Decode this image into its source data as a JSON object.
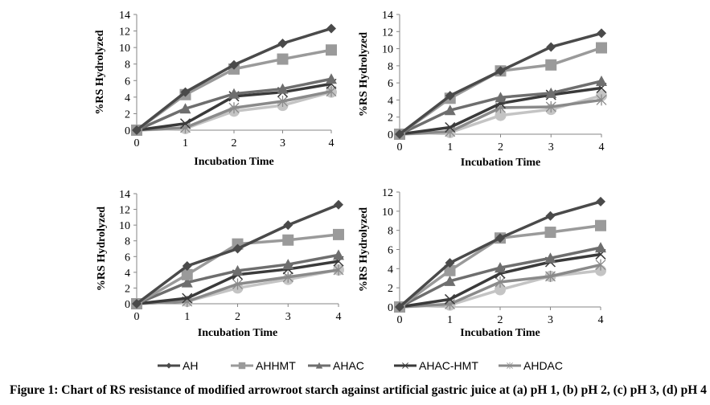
{
  "caption": "Figure 1: Chart of RS resistance of modified arrowroot starch against artificial gastric juice at (a) pH 1, (b) pH 2, (c) pH 3, (d) pH 4",
  "legend": [
    {
      "name": "AH",
      "marker": "diamond",
      "color": "#4a4a4a"
    },
    {
      "name": "AHHMT",
      "marker": "square",
      "color": "#9a9a9a"
    },
    {
      "name": "AHAC",
      "marker": "triangle",
      "color": "#6e6e6e"
    },
    {
      "name": "AHAC-HMT",
      "marker": "x",
      "color": "#3a3a3a"
    },
    {
      "name": "AHDAC",
      "marker": "asterisk",
      "color": "#8a8a8a"
    }
  ],
  "chart_data": [
    {
      "type": "line",
      "panel": "(a) pH 1",
      "xlabel": "Incubation Time",
      "ylabel": "%RS Hydrolyzed",
      "x": [
        0,
        1,
        2,
        3,
        4
      ],
      "ylim": [
        0,
        14
      ],
      "yticks": [
        0,
        2,
        4,
        6,
        8,
        10,
        12,
        14
      ],
      "grid": false,
      "legend": "bottom",
      "series": [
        {
          "name": "AH",
          "marker": "diamond",
          "color": "#4a4a4a",
          "values": [
            0,
            4.6,
            7.9,
            10.5,
            12.3
          ]
        },
        {
          "name": "AHHMT",
          "marker": "square",
          "color": "#9a9a9a",
          "values": [
            0,
            4.3,
            7.4,
            8.6,
            9.7
          ]
        },
        {
          "name": "AHAC",
          "marker": "triangle",
          "color": "#6e6e6e",
          "values": [
            0,
            2.6,
            4.4,
            5.0,
            6.2
          ]
        },
        {
          "name": "AHAC-HMT",
          "marker": "x",
          "color": "#3a3a3a",
          "values": [
            0,
            0.8,
            4.1,
            4.6,
            5.6
          ]
        },
        {
          "name": "AHDAC",
          "marker": "asterisk",
          "color": "#8a8a8a",
          "values": [
            0,
            0.3,
            2.7,
            3.5,
            4.7
          ]
        },
        {
          "name": "",
          "marker": "circle",
          "color": "#c4c4c4",
          "values": [
            0,
            0.2,
            2.3,
            3.0,
            4.6
          ]
        }
      ]
    },
    {
      "type": "line",
      "panel": "(b) pH 2",
      "xlabel": "Incubation Time",
      "ylabel": "%RS Hydrolyzed",
      "x": [
        0,
        1,
        2,
        3,
        4
      ],
      "ylim": [
        0,
        14
      ],
      "yticks": [
        0,
        2,
        4,
        6,
        8,
        10,
        12,
        14
      ],
      "grid": false,
      "legend": "bottom",
      "series": [
        {
          "name": "AH",
          "marker": "diamond",
          "color": "#4a4a4a",
          "values": [
            0,
            4.5,
            7.4,
            10.2,
            11.8
          ]
        },
        {
          "name": "AHHMT",
          "marker": "square",
          "color": "#9a9a9a",
          "values": [
            0,
            4.2,
            7.4,
            8.1,
            10.1
          ]
        },
        {
          "name": "AHAC",
          "marker": "triangle",
          "color": "#6e6e6e",
          "values": [
            0,
            2.8,
            4.3,
            4.8,
            6.2
          ]
        },
        {
          "name": "AHAC-HMT",
          "marker": "x",
          "color": "#3a3a3a",
          "values": [
            0,
            0.8,
            3.6,
            4.6,
            5.4
          ]
        },
        {
          "name": "AHDAC",
          "marker": "asterisk",
          "color": "#8a8a8a",
          "values": [
            0,
            0.3,
            3.1,
            3.2,
            4.0
          ]
        },
        {
          "name": "",
          "marker": "circle",
          "color": "#c4c4c4",
          "values": [
            0,
            0.2,
            2.2,
            2.9,
            4.5
          ]
        }
      ]
    },
    {
      "type": "line",
      "panel": "(c) pH 3",
      "xlabel": "Incubation Time",
      "ylabel": "%RS Hydrolyzed",
      "x": [
        0,
        1,
        2,
        3,
        4
      ],
      "ylim": [
        0,
        14
      ],
      "yticks": [
        0,
        2,
        4,
        6,
        8,
        10,
        12,
        14
      ],
      "grid": false,
      "legend": "bottom",
      "series": [
        {
          "name": "AH",
          "marker": "diamond",
          "color": "#4a4a4a",
          "values": [
            0,
            4.8,
            7.0,
            10.0,
            12.6
          ]
        },
        {
          "name": "AHHMT",
          "marker": "square",
          "color": "#9a9a9a",
          "values": [
            0,
            3.7,
            7.6,
            8.1,
            8.8
          ]
        },
        {
          "name": "AHAC",
          "marker": "triangle",
          "color": "#6e6e6e",
          "values": [
            0,
            2.7,
            4.2,
            5.0,
            6.2
          ]
        },
        {
          "name": "AHAC-HMT",
          "marker": "x",
          "color": "#3a3a3a",
          "values": [
            0,
            0.7,
            3.7,
            4.4,
            5.4
          ]
        },
        {
          "name": "AHDAC",
          "marker": "asterisk",
          "color": "#8a8a8a",
          "values": [
            0,
            0.3,
            2.5,
            3.4,
            4.3
          ]
        },
        {
          "name": "",
          "marker": "circle",
          "color": "#c4c4c4",
          "values": [
            0,
            0.3,
            2.0,
            3.1,
            4.3
          ]
        }
      ]
    },
    {
      "type": "line",
      "panel": "(d) pH 4",
      "xlabel": "Incubation Time",
      "ylabel": "%RS Hydrolyzed",
      "x": [
        0,
        1,
        2,
        3,
        4
      ],
      "ylim": [
        0,
        12
      ],
      "yticks": [
        0,
        2,
        4,
        6,
        8,
        10,
        12
      ],
      "grid": false,
      "legend": "bottom",
      "series": [
        {
          "name": "AH",
          "marker": "diamond",
          "color": "#4a4a4a",
          "values": [
            0,
            4.6,
            7.2,
            9.5,
            11.0
          ]
        },
        {
          "name": "AHHMT",
          "marker": "square",
          "color": "#9a9a9a",
          "values": [
            0,
            3.8,
            7.2,
            7.8,
            8.5
          ]
        },
        {
          "name": "AHAC",
          "marker": "triangle",
          "color": "#6e6e6e",
          "values": [
            0,
            2.7,
            4.1,
            5.1,
            6.2
          ]
        },
        {
          "name": "AHAC-HMT",
          "marker": "x",
          "color": "#3a3a3a",
          "values": [
            0,
            0.8,
            3.5,
            4.7,
            5.5
          ]
        },
        {
          "name": "AHDAC",
          "marker": "asterisk",
          "color": "#8a8a8a",
          "values": [
            0,
            0.3,
            2.6,
            3.2,
            4.4
          ]
        },
        {
          "name": "",
          "marker": "circle",
          "color": "#c4c4c4",
          "values": [
            0,
            0.2,
            1.8,
            3.2,
            3.8
          ]
        }
      ]
    }
  ]
}
